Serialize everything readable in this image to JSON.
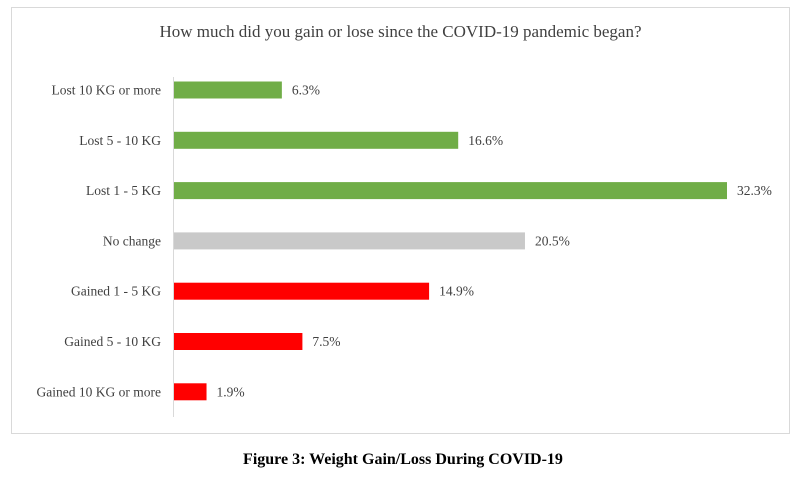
{
  "chart_data": {
    "type": "bar",
    "orientation": "horizontal",
    "title": "How much did you gain or lose since the COVID-19 pandemic began?",
    "categories": [
      "Lost 10 KG or more",
      "Lost 5 - 10 KG",
      "Lost 1 - 5 KG",
      "No change",
      "Gained 1 - 5 KG",
      "Gained 5 - 10 KG",
      "Gained 10 KG or more"
    ],
    "values": [
      6.3,
      16.6,
      32.3,
      20.5,
      14.9,
      7.5,
      1.9
    ],
    "value_labels": [
      "6.3%",
      "16.6%",
      "32.3%",
      "20.5%",
      "14.9%",
      "7.5%",
      "1.9%"
    ],
    "bar_colors": [
      "#70ad47",
      "#70ad47",
      "#70ad47",
      "#c9c9c9",
      "#ff0000",
      "#ff0000",
      "#ff0000"
    ],
    "xlim": [
      0,
      32.3
    ],
    "unit": "%",
    "grid": false,
    "legend": "none"
  },
  "caption": "Figure 3: Weight Gain/Loss During COVID-19"
}
